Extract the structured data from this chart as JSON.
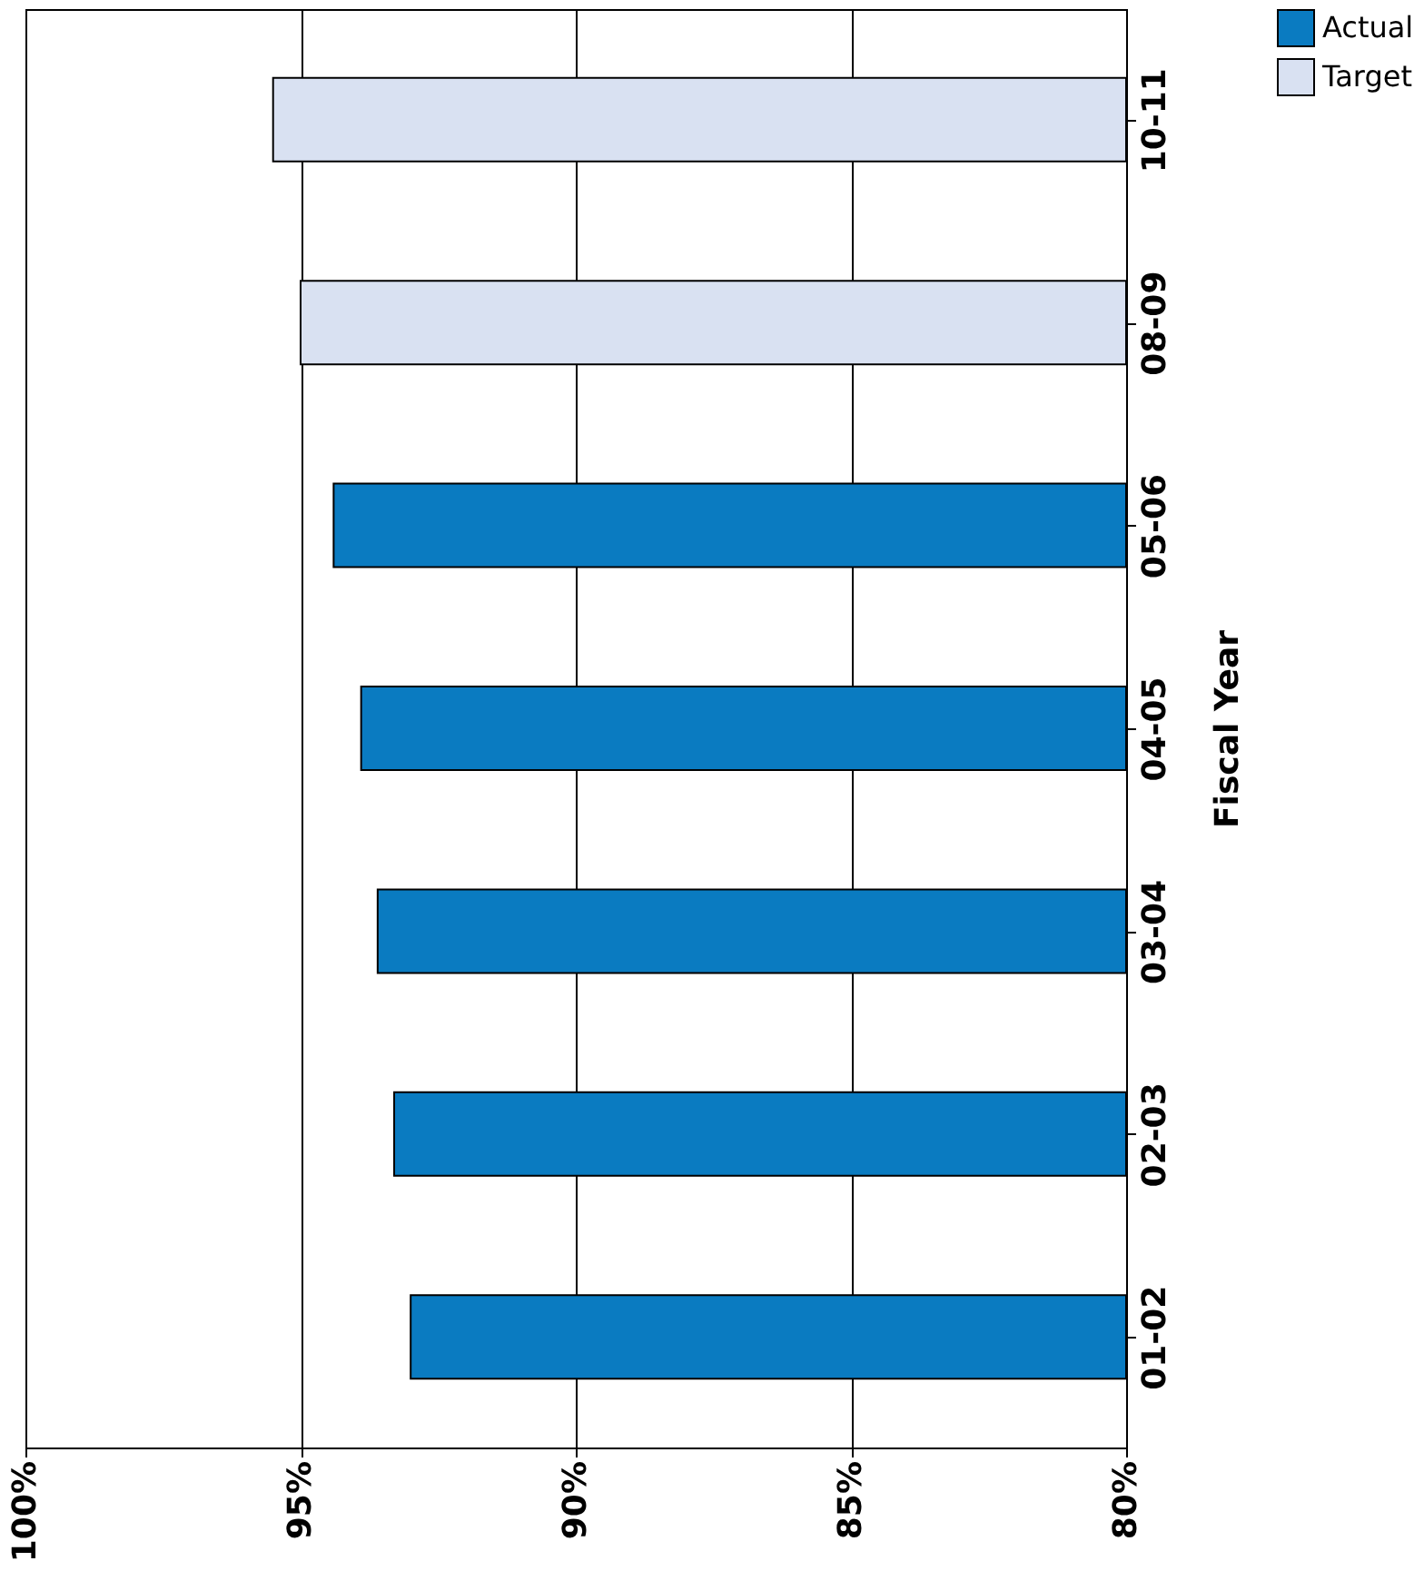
{
  "chart_data": {
    "type": "bar",
    "orientation": "horizontal",
    "ylabel": "Fiscal Year",
    "categories": [
      "10-11",
      "08-09",
      "05-06",
      "04-05",
      "03-04",
      "02-03",
      "01-02"
    ],
    "series": [
      {
        "name": "Actual",
        "color": "#0a7bc1",
        "values": [
          null,
          null,
          94.4,
          93.9,
          93.6,
          93.3,
          93.0
        ]
      },
      {
        "name": "Target",
        "color": "#d9e1f2",
        "values": [
          95.5,
          95.0,
          null,
          null,
          null,
          null,
          null
        ]
      }
    ],
    "xlim": [
      100,
      80
    ],
    "xticks": [
      {
        "value": 100,
        "label": "100%"
      },
      {
        "value": 95,
        "label": "95%"
      },
      {
        "value": 90,
        "label": "90%"
      },
      {
        "value": 85,
        "label": "85%"
      },
      {
        "value": 80,
        "label": "80%"
      }
    ],
    "grid": "x",
    "legend": "right"
  }
}
